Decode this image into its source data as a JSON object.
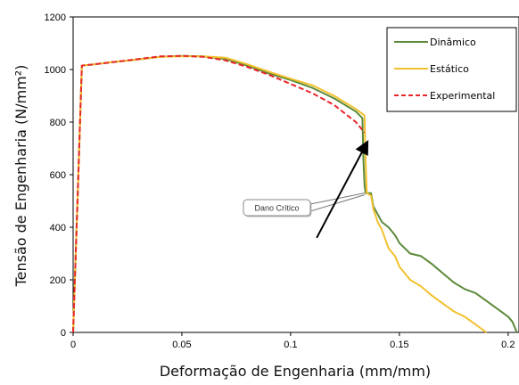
{
  "chart_data": {
    "type": "line",
    "xlabel": "Deformação de Engenharia (mm/mm)",
    "ylabel": "Tensão de Engenharia (N/mm²)",
    "xlim": [
      0,
      0.205
    ],
    "ylim": [
      0,
      1200
    ],
    "x_ticks": [
      0,
      0.05,
      0.1,
      0.15,
      0.2
    ],
    "x_tick_labels": [
      "0",
      "0.05",
      "0.1",
      "0.15",
      "0.2"
    ],
    "y_ticks": [
      0,
      200,
      400,
      600,
      800,
      1000,
      1200
    ],
    "y_tick_labels": [
      "0",
      "200",
      "400",
      "600",
      "800",
      "1000",
      "1200"
    ],
    "grid": false,
    "legend_position": "top-right",
    "series": [
      {
        "name": "Dinâmico",
        "color": "#5c8a3a",
        "dash": "solid",
        "points": [
          [
            0,
            0
          ],
          [
            0.002,
            500
          ],
          [
            0.004,
            1015
          ],
          [
            0.01,
            1020
          ],
          [
            0.02,
            1030
          ],
          [
            0.03,
            1038
          ],
          [
            0.04,
            1048
          ],
          [
            0.05,
            1052
          ],
          [
            0.06,
            1050
          ],
          [
            0.07,
            1040
          ],
          [
            0.08,
            1015
          ],
          [
            0.09,
            985
          ],
          [
            0.1,
            960
          ],
          [
            0.11,
            930
          ],
          [
            0.12,
            890
          ],
          [
            0.13,
            840
          ],
          [
            0.133,
            815
          ],
          [
            0.1335,
            650
          ],
          [
            0.134,
            560
          ],
          [
            0.1345,
            530
          ],
          [
            0.137,
            530
          ],
          [
            0.138,
            480
          ],
          [
            0.14,
            450
          ],
          [
            0.142,
            420
          ],
          [
            0.145,
            400
          ],
          [
            0.148,
            370
          ],
          [
            0.15,
            340
          ],
          [
            0.155,
            300
          ],
          [
            0.16,
            290
          ],
          [
            0.165,
            260
          ],
          [
            0.17,
            225
          ],
          [
            0.175,
            190
          ],
          [
            0.18,
            165
          ],
          [
            0.185,
            150
          ],
          [
            0.19,
            120
          ],
          [
            0.195,
            90
          ],
          [
            0.2,
            60
          ],
          [
            0.202,
            40
          ],
          [
            0.204,
            0
          ]
        ]
      },
      {
        "name": "Estático",
        "color": "#f2c12e",
        "dash": "solid",
        "points": [
          [
            0,
            0
          ],
          [
            0.002,
            500
          ],
          [
            0.004,
            1015
          ],
          [
            0.01,
            1020
          ],
          [
            0.02,
            1030
          ],
          [
            0.03,
            1038
          ],
          [
            0.04,
            1048
          ],
          [
            0.05,
            1050
          ],
          [
            0.06,
            1050
          ],
          [
            0.07,
            1045
          ],
          [
            0.08,
            1020
          ],
          [
            0.09,
            992
          ],
          [
            0.1,
            965
          ],
          [
            0.11,
            940
          ],
          [
            0.12,
            900
          ],
          [
            0.13,
            850
          ],
          [
            0.134,
            825
          ],
          [
            0.1345,
            650
          ],
          [
            0.135,
            530
          ],
          [
            0.137,
            520
          ],
          [
            0.138,
            470
          ],
          [
            0.14,
            420
          ],
          [
            0.142,
            390
          ],
          [
            0.145,
            320
          ],
          [
            0.148,
            290
          ],
          [
            0.15,
            250
          ],
          [
            0.155,
            200
          ],
          [
            0.16,
            175
          ],
          [
            0.165,
            140
          ],
          [
            0.17,
            110
          ],
          [
            0.175,
            80
          ],
          [
            0.18,
            60
          ],
          [
            0.185,
            30
          ],
          [
            0.19,
            0
          ]
        ]
      },
      {
        "name": "Experimental",
        "color": "#e8262a",
        "dash": "dashed",
        "points": [
          [
            0,
            0
          ],
          [
            0.002,
            500
          ],
          [
            0.004,
            1015
          ],
          [
            0.01,
            1020
          ],
          [
            0.02,
            1030
          ],
          [
            0.03,
            1040
          ],
          [
            0.04,
            1050
          ],
          [
            0.05,
            1052
          ],
          [
            0.06,
            1048
          ],
          [
            0.07,
            1035
          ],
          [
            0.08,
            1010
          ],
          [
            0.09,
            980
          ],
          [
            0.1,
            945
          ],
          [
            0.11,
            910
          ],
          [
            0.12,
            865
          ],
          [
            0.13,
            800
          ],
          [
            0.134,
            760
          ]
        ]
      }
    ],
    "annotations": [
      {
        "text": "Dano Crítico",
        "point": [
          0.134,
          530
        ]
      },
      {
        "text": "",
        "arrow_from": [
          0.112,
          360
        ],
        "arrow_to": [
          0.135,
          720
        ]
      }
    ]
  }
}
